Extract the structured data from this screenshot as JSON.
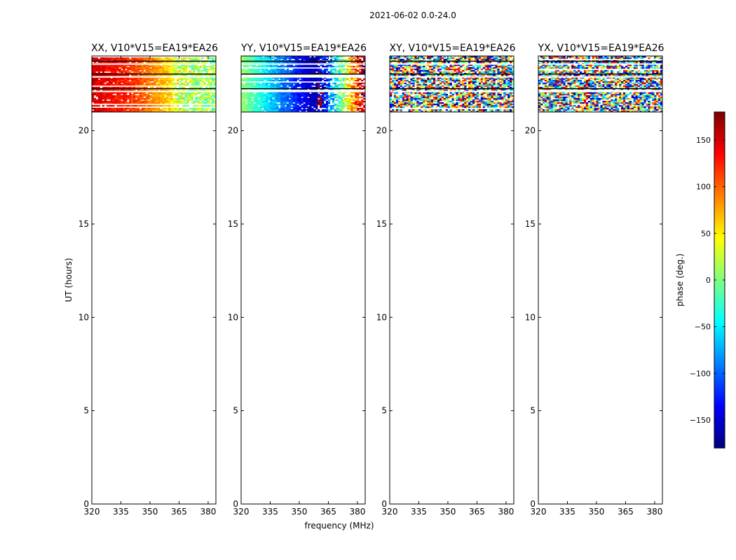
{
  "figure": {
    "suptitle": "2021-06-02 0.0-24.0",
    "xlabel": "frequency (MHz)",
    "ylabel": "UT (hours)"
  },
  "colorbar": {
    "label": "phase (deg.)",
    "range": [
      -180,
      180
    ],
    "ticks": [
      150,
      100,
      50,
      0,
      -50,
      -100,
      -150
    ],
    "tick_labels": [
      "150",
      "100",
      "50",
      "0",
      "−50",
      "−100",
      "−150"
    ],
    "colormap": [
      "#00007f",
      "#0000ff",
      "#007fff",
      "#00ffff",
      "#7fff7f",
      "#ffff00",
      "#ff7f00",
      "#ff0000",
      "#7f0000"
    ]
  },
  "chart_data": [
    {
      "type": "heatmap",
      "title": "XX, V10*V15=EA19*EA26",
      "xlim": [
        320,
        384
      ],
      "ylim": [
        0,
        24
      ],
      "xticks": [
        320,
        335,
        350,
        365,
        380
      ],
      "yticks": [
        0,
        5,
        10,
        15,
        20
      ],
      "data_time_range_hours": [
        21.0,
        24.0
      ],
      "gap_rows_hours": [
        23.72,
        23.03,
        22.25
      ],
      "phase_profile": {
        "freq": [
          320,
          340,
          360,
          363,
          384
        ],
        "phase_deg": [
          150,
          120,
          60,
          30,
          0
        ]
      },
      "noisy_above_mhz": 363,
      "noise_scale": 0.25
    },
    {
      "type": "heatmap",
      "title": "YY, V10*V15=EA19*EA26",
      "xlim": [
        320,
        384
      ],
      "ylim": [
        0,
        24
      ],
      "xticks": [
        320,
        335,
        350,
        365,
        380
      ],
      "yticks": [
        0,
        5,
        10,
        15,
        20
      ],
      "data_time_range_hours": [
        21.0,
        24.0
      ],
      "gap_rows_hours": [
        23.72,
        23.03,
        22.25
      ],
      "phase_profile": {
        "freq": [
          320,
          335,
          350,
          360,
          384
        ],
        "phase_deg": [
          10,
          -60,
          -130,
          -170,
          170
        ]
      },
      "noisy_above_mhz": 360,
      "noise_scale": 0.25
    },
    {
      "type": "heatmap",
      "title": "XY, V10*V15=EA19*EA26",
      "xlim": [
        320,
        384
      ],
      "ylim": [
        0,
        24
      ],
      "xticks": [
        320,
        335,
        350,
        365,
        380
      ],
      "yticks": [
        0,
        5,
        10,
        15,
        20
      ],
      "data_time_range_hours": [
        21.0,
        24.0
      ],
      "gap_rows_hours": [
        23.72,
        23.03,
        22.25
      ],
      "phase_profile": {
        "freq": [
          320,
          384
        ],
        "phase_deg": [
          0,
          0
        ]
      },
      "noisy_above_mhz": 320,
      "noise_scale": 1.0
    },
    {
      "type": "heatmap",
      "title": "YX, V10*V15=EA19*EA26",
      "xlim": [
        320,
        384
      ],
      "ylim": [
        0,
        24
      ],
      "xticks": [
        320,
        335,
        350,
        365,
        380
      ],
      "yticks": [
        0,
        5,
        10,
        15,
        20
      ],
      "data_time_range_hours": [
        21.0,
        24.0
      ],
      "gap_rows_hours": [
        23.72,
        23.03,
        22.25
      ],
      "phase_profile": {
        "freq": [
          320,
          384
        ],
        "phase_deg": [
          0,
          0
        ]
      },
      "noisy_above_mhz": 320,
      "noise_scale": 1.0
    }
  ]
}
